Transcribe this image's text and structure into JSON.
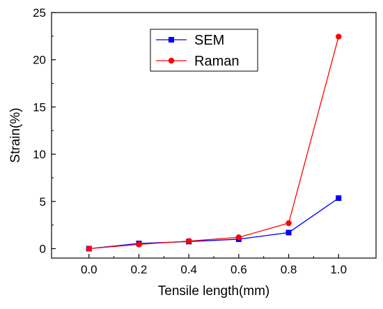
{
  "chart_data": {
    "type": "line",
    "title": "",
    "xlabel": "Tensile length(mm)",
    "ylabel": "Strain(%)",
    "x": [
      0.0,
      0.2,
      0.4,
      0.6,
      0.8,
      1.0
    ],
    "xticks": [
      "0.0",
      "0.2",
      "0.4",
      "0.6",
      "0.8",
      "1.0"
    ],
    "yticks": [
      "0",
      "5",
      "10",
      "15",
      "20",
      "25"
    ],
    "xlim": [
      -0.15,
      1.15
    ],
    "ylim": [
      -1.0,
      25
    ],
    "grid": false,
    "legend_position": "top-center",
    "series": [
      {
        "name": "SEM",
        "color": "#0000ff",
        "marker": "square",
        "values": [
          0.0,
          0.55,
          0.75,
          1.0,
          1.7,
          5.35
        ]
      },
      {
        "name": "Raman",
        "color": "#ff0000",
        "marker": "circle",
        "values": [
          0.0,
          0.45,
          0.8,
          1.2,
          2.7,
          22.45
        ]
      }
    ]
  }
}
